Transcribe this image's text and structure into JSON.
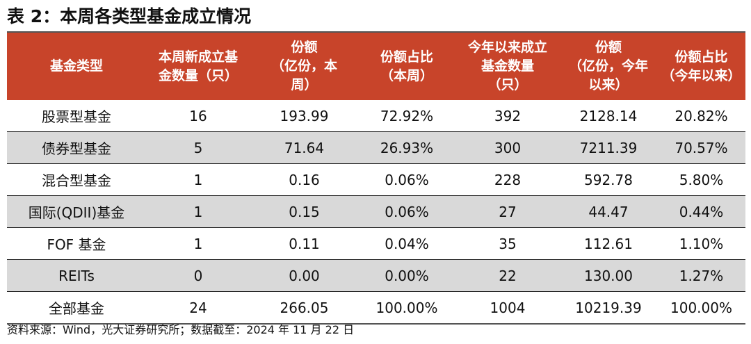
{
  "title": "表 2：本周各类型基金成立情况",
  "headers": [
    [
      "基金类型"
    ],
    [
      "本周新成立基",
      "金数量（只）"
    ],
    [
      "份额",
      "（亿份，本",
      "周）"
    ],
    [
      "份额占比",
      "（本周）"
    ],
    [
      "今年以来成立",
      "基金数量",
      "（只）"
    ],
    [
      "份额",
      "（亿份，今年",
      "以来）"
    ],
    [
      "份额占比",
      "（今年以来）"
    ]
  ],
  "rows": [
    [
      "股票型基金",
      "16",
      "193.99",
      "72.92%",
      "392",
      "2128.14",
      "20.82%"
    ],
    [
      "债券型基金",
      "5",
      "71.64",
      "26.93%",
      "300",
      "7211.39",
      "70.57%"
    ],
    [
      "混合型基金",
      "1",
      "0.16",
      "0.06%",
      "228",
      "592.78",
      "5.80%"
    ],
    [
      "国际(QDII)基金",
      "1",
      "0.15",
      "0.06%",
      "27",
      "44.47",
      "0.44%"
    ],
    [
      "FOF 基金",
      "1",
      "0.11",
      "0.04%",
      "35",
      "112.61",
      "1.10%"
    ],
    [
      "REITs",
      "0",
      "0.00",
      "0.00%",
      "22",
      "130.00",
      "1.27%"
    ],
    [
      "全部基金",
      "24",
      "266.05",
      "100.00%",
      "1004",
      "10219.39",
      "100.00%"
    ]
  ],
  "source": "资料来源：Wind，光大证券研究所；数据截至：2024 年 11 月 22 日",
  "colors": {
    "header_bg": "#c8442a",
    "header_text": "#ffffff",
    "shaded_row": "#d9d9d9"
  }
}
